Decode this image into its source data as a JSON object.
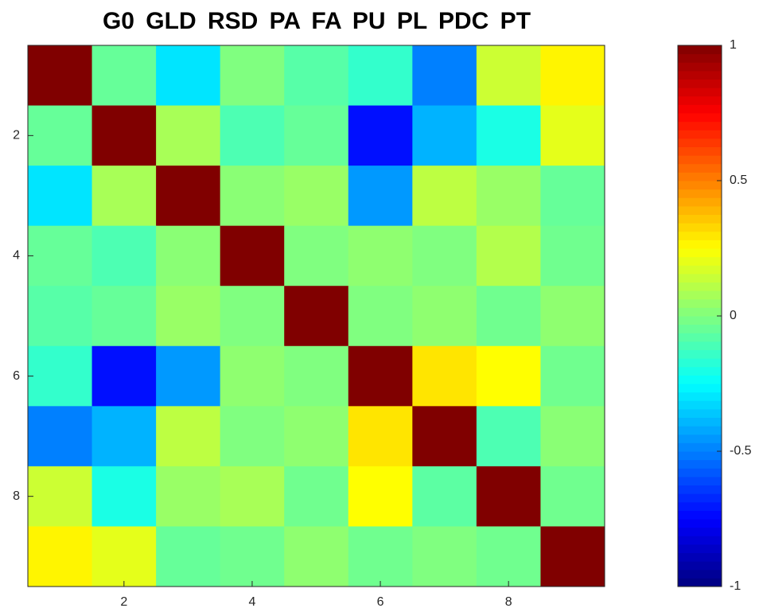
{
  "chart_data": {
    "type": "heatmap",
    "title": "G0 GLD RSD PA FA PU PL PDC PT",
    "colormap": "jet",
    "z": [
      [
        1,
        -0.05,
        -0.3,
        0.0,
        -0.08,
        -0.15,
        -0.5,
        0.15,
        0.27
      ],
      [
        -0.05,
        1,
        0.08,
        -0.1,
        -0.05,
        -0.72,
        -0.4,
        -0.2,
        0.2
      ],
      [
        -0.3,
        0.08,
        1,
        0.02,
        0.05,
        -0.45,
        0.12,
        0.05,
        -0.05
      ],
      [
        -0.05,
        -0.1,
        0.02,
        1,
        0.0,
        0.03,
        0.0,
        0.1,
        -0.03
      ],
      [
        -0.08,
        -0.05,
        0.05,
        0.0,
        1,
        0.0,
        0.03,
        -0.03,
        0.03
      ],
      [
        -0.15,
        -0.72,
        -0.45,
        0.03,
        0.0,
        1,
        0.3,
        0.25,
        -0.03
      ],
      [
        -0.5,
        -0.4,
        0.12,
        0.0,
        0.03,
        0.3,
        1,
        -0.1,
        0.02
      ],
      [
        0.15,
        -0.2,
        0.05,
        0.08,
        -0.03,
        0.25,
        -0.07,
        1,
        -0.03
      ],
      [
        0.27,
        0.2,
        -0.05,
        -0.03,
        0.03,
        -0.03,
        0.0,
        -0.03,
        1
      ]
    ],
    "xlim": [
      0.5,
      9.5
    ],
    "xticks": [
      2,
      4,
      6,
      8
    ],
    "ylim": [
      0.5,
      9.5
    ],
    "yticks": [
      2,
      4,
      6,
      8
    ],
    "y_reversed": true,
    "colorbar": {
      "lim": [
        -1,
        1
      ],
      "ticks": [
        -1,
        -0.5,
        0,
        0.5,
        1
      ]
    }
  }
}
